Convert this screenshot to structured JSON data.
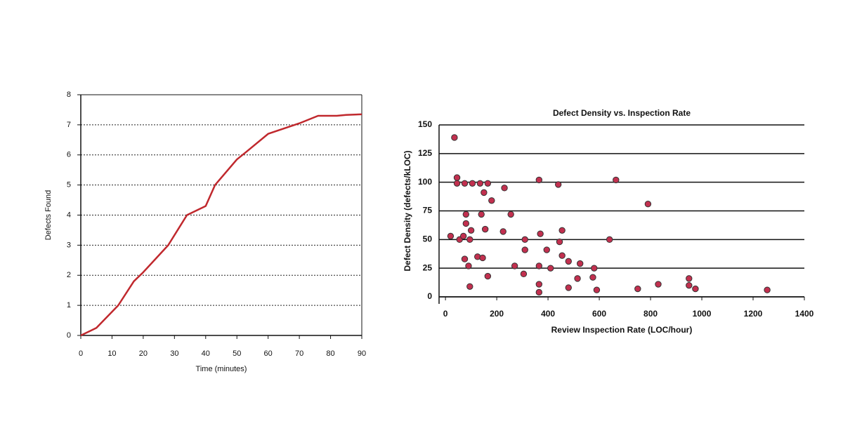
{
  "chart_data": [
    {
      "type": "line",
      "xlabel": "Time (minutes)",
      "ylabel": "Defects Found",
      "grid": true,
      "xlim": [
        0,
        90
      ],
      "ylim": [
        0,
        8
      ],
      "xticks": [
        0,
        10,
        20,
        30,
        40,
        50,
        60,
        70,
        80,
        90
      ],
      "yticks": [
        0,
        1,
        2,
        3,
        4,
        5,
        6,
        7,
        8
      ],
      "x": [
        0,
        5,
        12,
        17,
        20,
        28,
        34,
        40,
        43,
        50,
        53,
        60,
        70,
        76,
        82,
        85,
        90
      ],
      "series": [
        {
          "color": "#c0282d",
          "values": [
            0,
            0.25,
            1,
            1.8,
            2.1,
            3,
            4,
            4.3,
            5,
            5.85,
            6.1,
            6.7,
            7.05,
            7.3,
            7.3,
            7.33,
            7.35
          ]
        }
      ]
    },
    {
      "type": "scatter",
      "title": "Defect Density vs. Inspection Rate",
      "xlabel": "Review Inspection Rate (LOC/hour)",
      "ylabel": "Defect Density (defects/kLOC)",
      "grid": true,
      "xlim": [
        -25,
        1400
      ],
      "ylim": [
        0,
        150
      ],
      "xticks": [
        0,
        200,
        400,
        600,
        800,
        1000,
        1200,
        1400
      ],
      "yticks": [
        0,
        25,
        50,
        75,
        100,
        125,
        150
      ],
      "color": "#c2304f",
      "x": [
        35,
        45,
        45,
        75,
        105,
        135,
        165,
        150,
        230,
        180,
        365,
        440,
        665,
        790,
        20,
        55,
        70,
        80,
        80,
        100,
        95,
        140,
        155,
        255,
        225,
        370,
        455,
        310,
        445,
        640,
        75,
        90,
        125,
        145,
        95,
        165,
        270,
        305,
        310,
        395,
        365,
        410,
        455,
        480,
        525,
        580,
        515,
        575,
        365,
        365,
        480,
        590,
        750,
        830,
        950,
        950,
        975,
        1255
      ],
      "values": [
        139,
        104,
        99,
        99,
        99,
        99,
        99,
        91,
        95,
        84,
        102,
        98,
        102,
        81,
        53,
        50,
        53,
        72,
        64,
        58,
        50,
        72,
        59,
        72,
        57,
        55,
        58,
        50,
        48,
        50,
        33,
        27,
        35,
        34,
        9,
        18,
        27,
        20,
        41,
        41,
        27,
        25,
        36,
        31,
        29,
        25,
        16,
        17,
        11,
        4,
        8,
        6,
        7,
        11,
        16,
        10,
        7,
        6
      ]
    }
  ]
}
